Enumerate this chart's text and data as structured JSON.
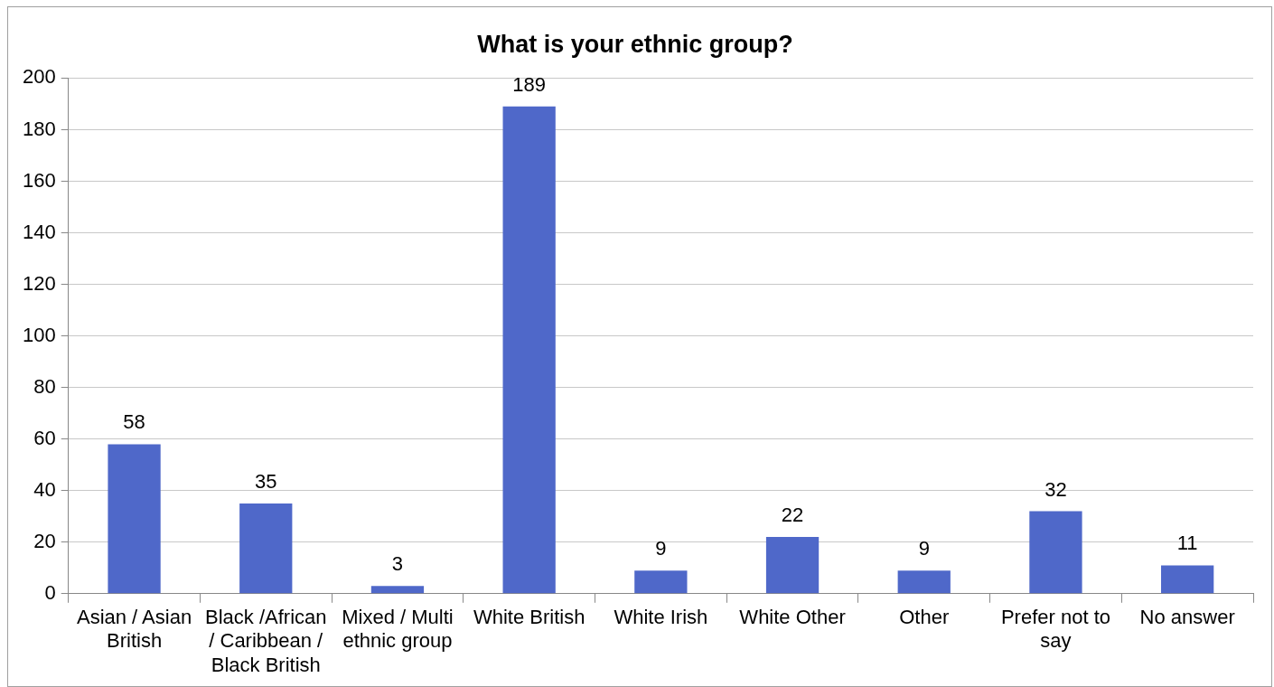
{
  "chart_data": {
    "type": "bar",
    "title": "What is your ethnic group?",
    "categories": [
      "Asian / Asian British",
      "Black /African / Caribbean / Black British",
      "Mixed / Multi ethnic group",
      "White British",
      "White Irish",
      "White Other",
      "Other",
      "Prefer not to say",
      "No answer"
    ],
    "values": [
      58,
      35,
      3,
      189,
      9,
      22,
      9,
      32,
      11
    ],
    "color": "#4f68c9",
    "ylim": [
      0,
      200
    ],
    "yticks": [
      0,
      20,
      40,
      60,
      80,
      100,
      120,
      140,
      160,
      180,
      200
    ],
    "grid": "y",
    "legend": false,
    "data_labels": true
  }
}
